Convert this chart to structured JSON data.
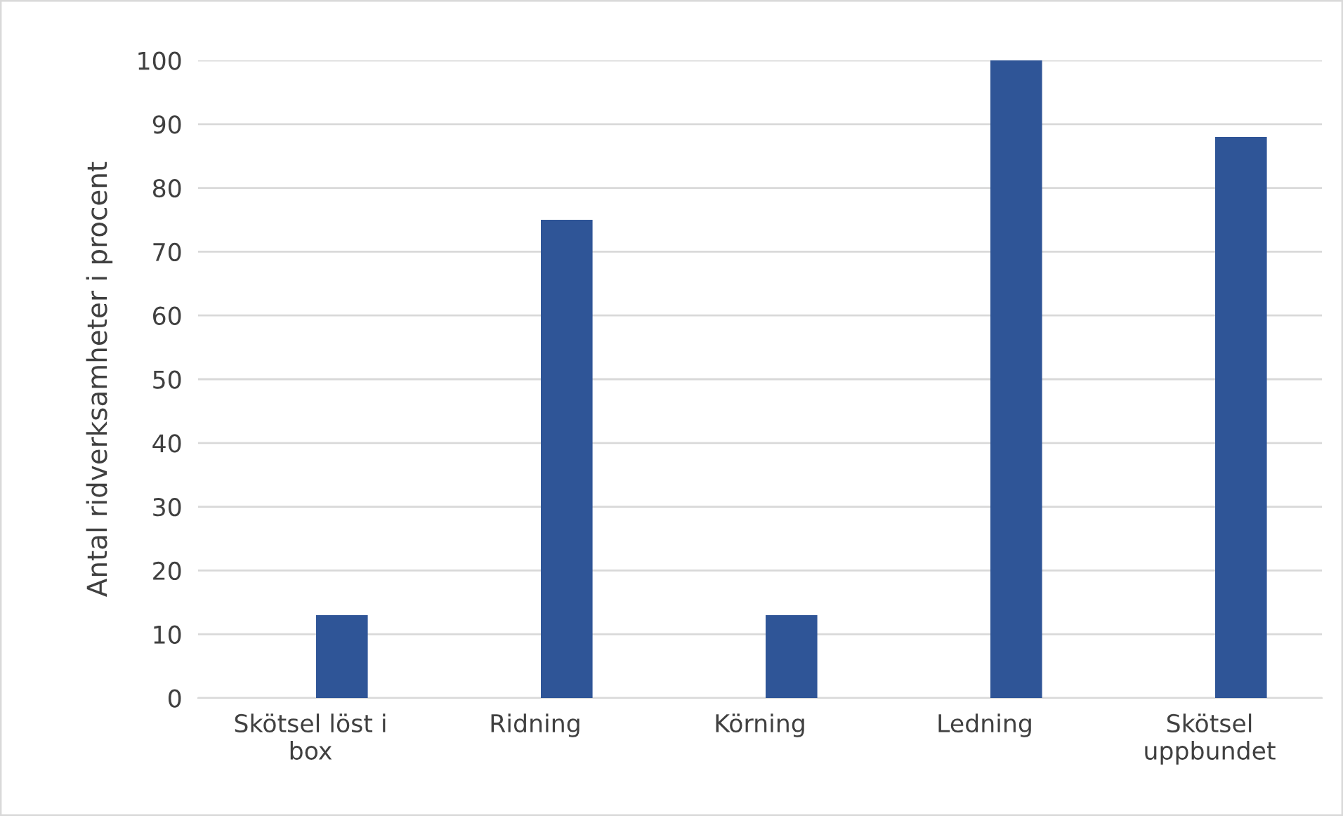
{
  "chart_data": {
    "type": "bar",
    "ylabel": "Antal ridverksamheter i procent",
    "categories": [
      "Skötsel löst i box",
      "Ridning",
      "Körning",
      "Ledning",
      "Skötsel uppbundet"
    ],
    "values": [
      13,
      75,
      13,
      100,
      88
    ],
    "color": "#2f5597",
    "ylim": [
      0,
      100
    ],
    "yticks": [
      0,
      10,
      20,
      30,
      40,
      50,
      60,
      70,
      80,
      90,
      100
    ],
    "grid": "y",
    "legend": false
  }
}
